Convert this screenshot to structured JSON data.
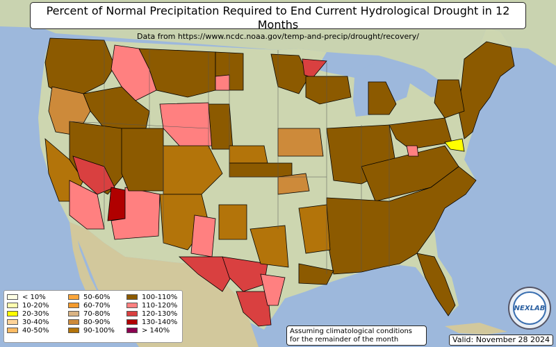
{
  "title": "Percent of Normal Precipitation Required to End Current Hydrological Drought in 12 Months",
  "subtitle": "Data from https://www.ncdc.noaa.gov/temp-and-precip/drought/recovery/",
  "note_line1": "Assuming climatological conditions",
  "note_line2": "for the remainder of the month",
  "valid": "Valid: November 28 2024",
  "logo_text": "NEXLAB",
  "legend": [
    {
      "label": "< 10%",
      "color": "#ffffe5"
    },
    {
      "label": "10-20%",
      "color": "#ffffb0"
    },
    {
      "label": "20-30%",
      "color": "#ffff00"
    },
    {
      "label": "30-40%",
      "color": "#fed49a"
    },
    {
      "label": "40-50%",
      "color": "#fdbb63"
    },
    {
      "label": "50-60%",
      "color": "#fba63a"
    },
    {
      "label": "60-70%",
      "color": "#f49a2c"
    },
    {
      "label": "70-80%",
      "color": "#d9b384"
    },
    {
      "label": "80-90%",
      "color": "#cd8a3a"
    },
    {
      "label": "90-100%",
      "color": "#b3740a"
    },
    {
      "label": "100-110%",
      "color": "#8c5a00"
    },
    {
      "label": "110-120%",
      "color": "#ff8080"
    },
    {
      "label": "120-130%",
      "color": "#d94040"
    },
    {
      "label": "130-140%",
      "color": "#b00000"
    },
    {
      "label": "> 140%",
      "color": "#8b0050"
    }
  ],
  "colors": {
    "ocean": "#9db8dc",
    "land": "#d8d6b8",
    "veg": "#b8c89a",
    "mexico": "#d2c89c",
    "canada": "#c9d3b0"
  }
}
